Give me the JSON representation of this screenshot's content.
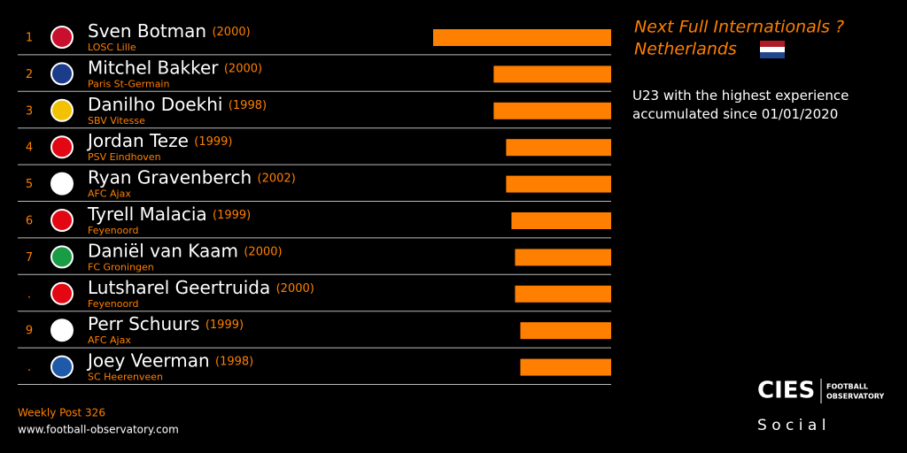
{
  "chart_data": {
    "type": "bar",
    "orientation": "horizontal",
    "color": "#ff7f00",
    "title": "Next Full Internationals ?",
    "title_country": "Netherlands",
    "subtitle": "U23 with the highest experience accumulated since 01/01/2020",
    "ranks": [
      "1",
      "2",
      "3",
      "4",
      "5",
      "6",
      "7",
      ".",
      "9",
      "."
    ],
    "categories": [
      "Sven Botman",
      "Mitchel Bakker",
      "Danilho Doekhi",
      "Jordan Teze",
      "Ryan Gravenberch",
      "Tyrell Malacia",
      "Daniël van Kaam",
      "Lutsharel Geertruida",
      "Perr Schuurs",
      "Joey Veerman"
    ],
    "years": [
      "(2000)",
      "(2000)",
      "(1998)",
      "(1999)",
      "(2002)",
      "(1999)",
      "(2000)",
      "(2000)",
      "(1999)",
      "(1998)"
    ],
    "clubs": [
      "LOSC Lille",
      "Paris St-Germain",
      "SBV Vitesse",
      "PSV Eindhoven",
      "AFC Ajax",
      "Feyenoord",
      "FC Groningen",
      "Feyenoord",
      "AFC Ajax",
      "SC Heerenveen"
    ],
    "values": [
      100,
      66,
      66,
      59,
      59,
      56,
      54,
      54,
      51,
      51
    ]
  },
  "footer": {
    "post": "Weekly Post 326",
    "url": "www.football-observatory.com"
  },
  "logo": {
    "brand": "CIES",
    "line1": "FOOTBALL",
    "line2": "OBSERVATORY",
    "tag": "S o c i a l"
  }
}
